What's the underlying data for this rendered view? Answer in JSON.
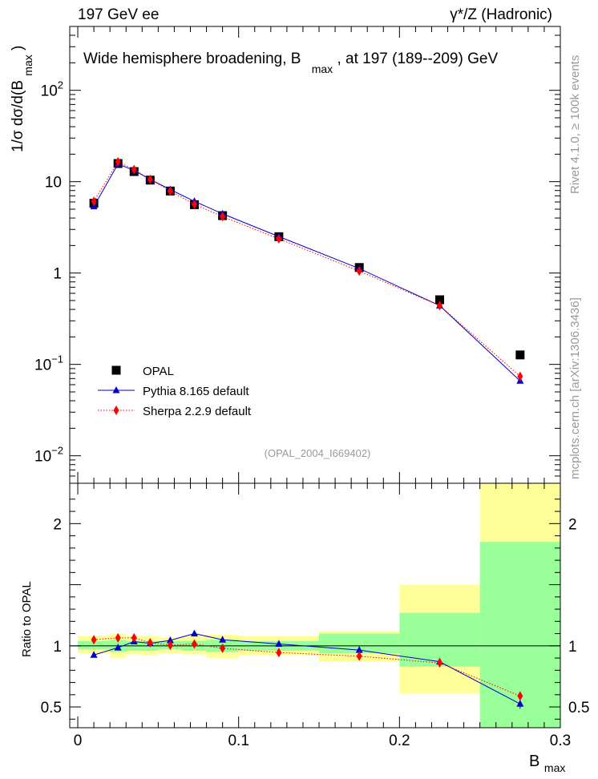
{
  "header": {
    "left": "197 GeV ee",
    "right": "γ*/Z (Hadronic)"
  },
  "side_labels": {
    "rivet": "Rivet 4.1.0, ≥ 100k events",
    "mcplots": "mcplots.cern.ch [arXiv:1306.3436]"
  },
  "chart_data": [
    {
      "type": "scatter",
      "panel": "main",
      "title_parts": {
        "pre": "Wide hemisphere broadening, B",
        "sub": "max",
        "post": ", at 197 (189--209) GeV"
      },
      "ylabel_parts": {
        "pre": "1/σ  dσ/d(B",
        "sub": "max",
        "post": ")"
      },
      "yscale": "log",
      "ylim": [
        0.005,
        500
      ],
      "xlim": [
        -0.005,
        0.3
      ],
      "y_ticks": [
        {
          "v": 0.01,
          "base": "10",
          "exp": "−2"
        },
        {
          "v": 0.1,
          "base": "10",
          "exp": "−1"
        },
        {
          "v": 1,
          "base": "1",
          "exp": ""
        },
        {
          "v": 10,
          "base": "10",
          "exp": ""
        },
        {
          "v": 100,
          "base": "10",
          "exp": "2"
        }
      ],
      "watermark": "(OPAL_2004_I669402)",
      "legend_position": "bottom-left",
      "series": [
        {
          "name": "OPAL",
          "color": "#000000",
          "marker": "square",
          "x": [
            0.01,
            0.025,
            0.035,
            0.045,
            0.0575,
            0.0725,
            0.09,
            0.125,
            0.175,
            0.225,
            0.275
          ],
          "values": [
            5.8,
            15.8,
            12.9,
            10.4,
            7.9,
            5.6,
            4.25,
            2.5,
            1.15,
            0.51,
            0.127
          ]
        },
        {
          "name": "Pythia 8.165 default",
          "color": "#0000cc",
          "marker": "triangle",
          "line": "solid",
          "x": [
            0.01,
            0.025,
            0.035,
            0.045,
            0.0575,
            0.0725,
            0.09,
            0.125,
            0.175,
            0.225,
            0.275
          ],
          "values": [
            5.35,
            15.6,
            13.3,
            10.6,
            8.2,
            6.1,
            4.45,
            2.51,
            1.12,
            0.44,
            0.066
          ]
        },
        {
          "name": "Sherpa 2.2.9 default",
          "color": "#ff0000",
          "marker": "diamond",
          "line": "dotted",
          "x": [
            0.01,
            0.025,
            0.035,
            0.045,
            0.0575,
            0.0725,
            0.09,
            0.125,
            0.175,
            0.225,
            0.275
          ],
          "values": [
            6.1,
            16.5,
            13.6,
            10.6,
            7.9,
            5.65,
            4.15,
            2.37,
            1.05,
            0.44,
            0.074
          ]
        }
      ]
    },
    {
      "type": "scatter",
      "panel": "ratio",
      "ylabel": "Ratio to OPAL",
      "xlabel_parts": {
        "pre": "B",
        "sub": "max"
      },
      "ylim": [
        0.33,
        2.33
      ],
      "xlim": [
        -0.005,
        0.3
      ],
      "x_ticks": [
        {
          "v": 0,
          "label": "0"
        },
        {
          "v": 0.1,
          "label": "0.1"
        },
        {
          "v": 0.2,
          "label": "0.2"
        },
        {
          "v": 0.3,
          "label": "0.3"
        }
      ],
      "y_ticks": [
        {
          "v": 0.5,
          "label": "0.5"
        },
        {
          "v": 1,
          "label": "1"
        },
        {
          "v": 2,
          "label": "2"
        }
      ],
      "bands": {
        "edges": [
          0,
          0.02,
          0.03,
          0.04,
          0.05,
          0.065,
          0.08,
          0.1,
          0.15,
          0.2,
          0.25,
          0.3
        ],
        "yellow_lo": [
          0.94,
          0.9,
          0.93,
          0.92,
          0.94,
          0.93,
          0.9,
          0.92,
          0.87,
          0.61,
          0.33
        ],
        "yellow_hi": [
          1.08,
          1.1,
          1.08,
          1.08,
          1.07,
          1.08,
          1.09,
          1.08,
          1.12,
          1.5,
          2.33
        ],
        "green_lo": [
          0.97,
          0.95,
          0.96,
          0.96,
          0.97,
          0.96,
          0.95,
          0.96,
          0.94,
          0.83,
          0.33
        ],
        "green_hi": [
          1.04,
          1.05,
          1.04,
          1.04,
          1.04,
          1.04,
          1.05,
          1.04,
          1.1,
          1.27,
          1.85
        ]
      },
      "series": [
        {
          "name": "Pythia 8.165 default",
          "color": "#0000cc",
          "marker": "triangle",
          "line": "solid",
          "x": [
            0.01,
            0.025,
            0.035,
            0.045,
            0.0575,
            0.0725,
            0.09,
            0.125,
            0.175,
            0.225,
            0.275
          ],
          "values": [
            0.925,
            0.985,
            1.035,
            1.02,
            1.045,
            1.1,
            1.05,
            1.015,
            0.965,
            0.87,
            0.525
          ],
          "errors": [
            0,
            0,
            0,
            0,
            0,
            0,
            0,
            0,
            0,
            0,
            0.04
          ]
        },
        {
          "name": "Sherpa 2.2.9 default",
          "color": "#ff0000",
          "marker": "diamond",
          "line": "dotted",
          "x": [
            0.01,
            0.025,
            0.035,
            0.045,
            0.0575,
            0.0725,
            0.09,
            0.125,
            0.175,
            0.225,
            0.275
          ],
          "values": [
            1.05,
            1.065,
            1.065,
            1.025,
            1.005,
            1.015,
            0.98,
            0.945,
            0.915,
            0.86,
            0.59
          ],
          "errors": [
            0,
            0,
            0,
            0,
            0,
            0,
            0,
            0,
            0,
            0,
            0.035
          ]
        }
      ]
    }
  ]
}
